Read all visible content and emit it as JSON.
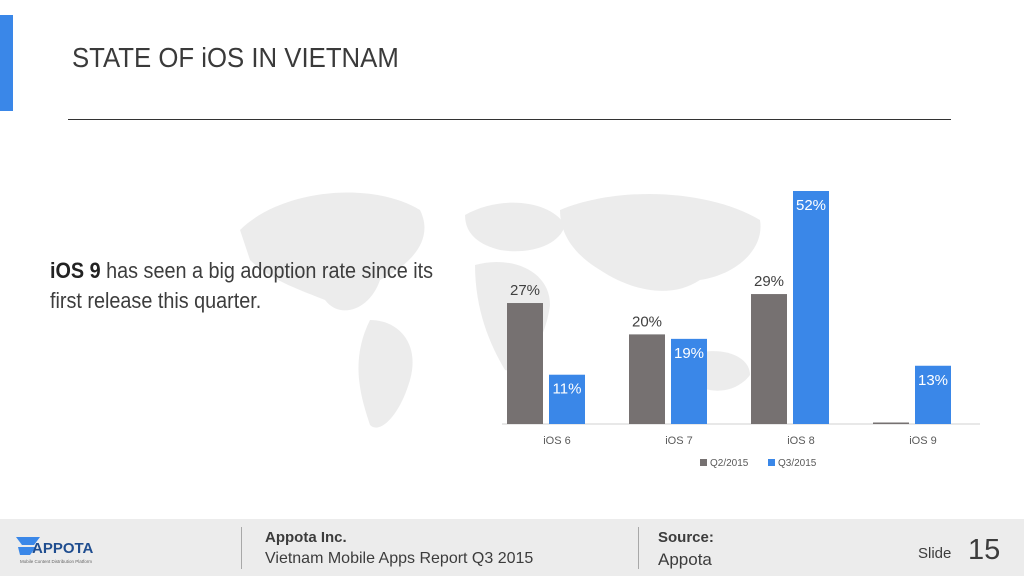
{
  "header": {
    "title": "STATE OF iOS IN VIETNAM"
  },
  "statement": {
    "highlight": "iOS 9",
    "text": " has seen a big adoption rate since its first release this quarter."
  },
  "chart_data": {
    "type": "bar",
    "categories": [
      "iOS 6",
      "iOS 7",
      "iOS 8",
      "iOS 9"
    ],
    "series": [
      {
        "name": "Q2/2015",
        "values": [
          27,
          20,
          29,
          0
        ],
        "labels": [
          "27%",
          "20%",
          "29%",
          ""
        ],
        "color": "#767171"
      },
      {
        "name": "Q3/2015",
        "values": [
          11,
          19,
          52,
          13
        ],
        "labels": [
          "11%",
          "19%",
          "52%",
          "13%"
        ],
        "color": "#3a87e8"
      }
    ],
    "ylim": [
      0,
      52
    ],
    "grid": false,
    "legend": "bottom"
  },
  "footer": {
    "company": "Appota Inc.",
    "report": "Vietnam Mobile Apps Report Q3 2015",
    "source_label": "Source:",
    "source_value": "Appota",
    "slide_label": "Slide",
    "slide_number": "15",
    "logo_text": "APPOTA",
    "logo_tagline": "Mobile Content Distribution Platform"
  }
}
